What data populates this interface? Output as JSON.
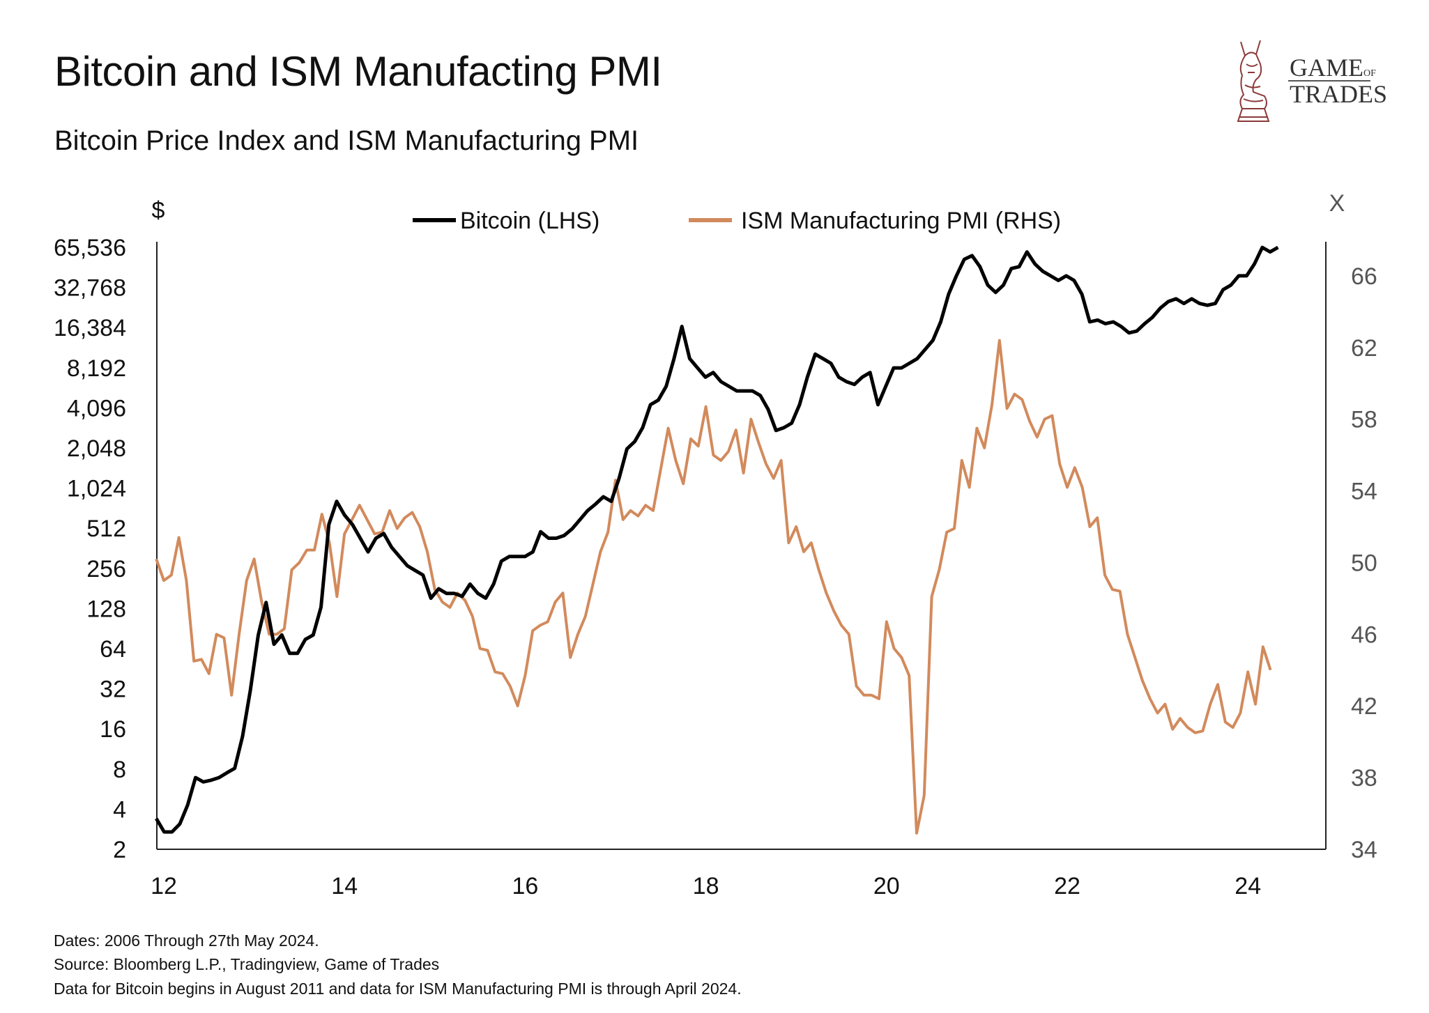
{
  "header": {
    "title": "Bitcoin and ISM Manufacting PMI",
    "subtitle": "Bitcoin Price Index and ISM Manufacturing PMI"
  },
  "logo": {
    "line1": "GAME",
    "line1_small": "OF",
    "line2": "TRADES",
    "color": "#8b3a3a"
  },
  "footer": {
    "line1": "Dates: 2006 Through 27th May 2024.",
    "line2": "Source: Bloomberg L.P., Tradingview, Game of Trades",
    "line3": "Data for Bitcoin begins in August 2011 and data for ISM Manufacturing PMI is through April 2024."
  },
  "chart_data": {
    "type": "line",
    "left_axis": {
      "label": "$",
      "scale": "log2",
      "ticks": [
        "2",
        "4",
        "8",
        "16",
        "32",
        "64",
        "128",
        "256",
        "512",
        "1,024",
        "2,048",
        "4,096",
        "8,192",
        "16,384",
        "32,768",
        "65,536"
      ],
      "tick_values": [
        2,
        4,
        8,
        16,
        32,
        64,
        128,
        256,
        512,
        1024,
        2048,
        4096,
        8192,
        16384,
        32768,
        65536
      ]
    },
    "right_axis": {
      "label": "X",
      "scale": "linear",
      "range": [
        34,
        68
      ],
      "ticks": [
        "34",
        "38",
        "42",
        "46",
        "50",
        "54",
        "58",
        "62",
        "66"
      ],
      "tick_values": [
        34,
        38,
        42,
        46,
        50,
        54,
        58,
        62,
        66
      ]
    },
    "x_axis": {
      "ticks": [
        "12",
        "14",
        "16",
        "18",
        "20",
        "22",
        "24"
      ],
      "tick_values": [
        2012,
        2014,
        2016,
        2018,
        2020,
        2022,
        2024
      ],
      "range": [
        2011.92,
        2025.0
      ]
    },
    "grid": false,
    "legend_position": "top",
    "series": [
      {
        "name": "Bitcoin (LHS)",
        "axis": "left",
        "color": "#000000",
        "start": "2011-12",
        "end": "2024-05",
        "values": [
          3.4,
          2.7,
          2.7,
          3.1,
          4.3,
          6.9,
          6.4,
          6.6,
          6.9,
          7.5,
          8.1,
          14.1,
          31.3,
          81,
          142,
          69,
          81,
          59,
          59,
          75,
          81,
          131,
          547,
          815,
          642,
          547,
          431,
          340,
          431,
          467,
          368,
          314,
          268,
          247,
          228,
          153,
          180,
          166,
          166,
          158,
          195,
          166,
          153,
          195,
          290,
          314,
          314,
          314,
          340,
          482,
          431,
          431,
          452,
          506,
          593,
          695,
          777,
          882,
          815,
          1212,
          2016,
          2290,
          2906,
          4324,
          4683,
          5943,
          9576,
          16710,
          9576,
          8160,
          6966,
          7542,
          6432,
          5943,
          5488,
          5488,
          5488,
          5067,
          3992,
          2771,
          2906,
          3145,
          4324,
          6966,
          10360,
          9576,
          8840,
          6966,
          6432,
          6135,
          6966,
          7542,
          4324,
          5943,
          8160,
          8160,
          8840,
          9576,
          11220,
          13150,
          18080,
          29130,
          40050,
          53300,
          56800,
          46900,
          34150,
          30070,
          34150,
          45450,
          46900,
          60530,
          49220,
          43360,
          40050,
          36990,
          40050,
          36990,
          29130,
          18080,
          18660,
          17520,
          18080,
          16710,
          14950,
          15430,
          17520,
          19580,
          22950,
          25660,
          26920,
          24850,
          26920,
          24850,
          24070,
          24850,
          31540,
          34150,
          40050,
          40050,
          49220,
          65480,
          60530,
          65480
        ]
      },
      {
        "name": "ISM Manufacturing PMI (RHS)",
        "axis": "right",
        "color": "#d28a5c",
        "start": "2011-12",
        "end": "2024-04",
        "values": [
          50.2,
          49.0,
          49.3,
          51.4,
          49.0,
          44.5,
          44.6,
          43.8,
          46.0,
          45.8,
          42.6,
          46.0,
          49.0,
          50.2,
          47.8,
          46.0,
          46.0,
          46.3,
          49.6,
          50.0,
          50.7,
          50.7,
          52.7,
          51.1,
          48.1,
          51.6,
          52.4,
          53.2,
          52.4,
          51.6,
          51.7,
          52.9,
          51.9,
          52.5,
          52.8,
          52.0,
          50.6,
          48.5,
          47.8,
          47.5,
          48.3,
          47.9,
          47.0,
          45.2,
          45.1,
          43.9,
          43.8,
          43.1,
          42.0,
          43.7,
          46.2,
          46.5,
          46.7,
          47.8,
          48.3,
          44.7,
          46.0,
          47.0,
          48.8,
          50.6,
          51.7,
          54.6,
          52.4,
          52.9,
          52.6,
          53.2,
          52.9,
          55.2,
          57.5,
          55.7,
          54.4,
          56.9,
          56.5,
          58.7,
          56.0,
          55.7,
          56.2,
          57.4,
          55.0,
          58.0,
          56.7,
          55.5,
          54.7,
          55.7,
          51.1,
          52.0,
          50.6,
          51.1,
          49.6,
          48.3,
          47.3,
          46.5,
          46.0,
          43.1,
          42.6,
          42.6,
          42.4,
          46.7,
          45.2,
          44.7,
          43.7,
          34.9,
          37.0,
          48.1,
          49.6,
          51.7,
          51.9,
          55.7,
          54.2,
          57.5,
          56.4,
          58.8,
          62.4,
          58.6,
          59.4,
          59.1,
          57.9,
          57.0,
          58.0,
          58.2,
          55.5,
          54.2,
          55.3,
          54.2,
          52.0,
          52.5,
          49.3,
          48.5,
          48.4,
          46.0,
          44.7,
          43.4,
          42.4,
          41.6,
          42.1,
          40.7,
          41.3,
          40.8,
          40.5,
          40.6,
          42.1,
          43.2,
          41.1,
          40.8,
          41.6,
          43.9,
          42.1,
          45.3,
          44.0
        ]
      }
    ]
  }
}
